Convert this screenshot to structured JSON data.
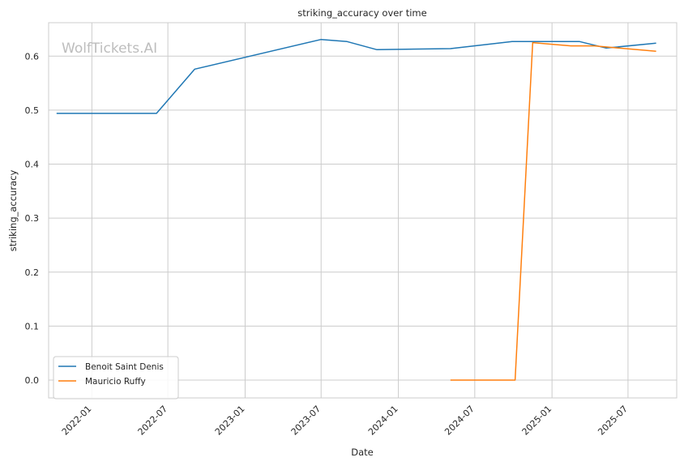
{
  "chart_data": {
    "type": "line",
    "title": "striking_accuracy over time",
    "xlabel": "Date",
    "ylabel": "striking_accuracy",
    "watermark": "WolfTickets.AI",
    "x_ticks": [
      "2022-01",
      "2022-07",
      "2023-01",
      "2023-07",
      "2024-01",
      "2024-07",
      "2025-01",
      "2025-07"
    ],
    "y_ticks": [
      "0.0",
      "0.1",
      "0.2",
      "0.3",
      "0.4",
      "0.5",
      "0.6"
    ],
    "xlim": [
      "2021-09-20",
      "2025-10-25"
    ],
    "ylim": [
      -0.033,
      0.662
    ],
    "grid": true,
    "legend_position": "lower-left",
    "series": [
      {
        "name": "Benoit Saint Denis",
        "color": "#1f77b4",
        "points": [
          {
            "x": "2021-10-09",
            "y": 0.494
          },
          {
            "x": "2022-06-04",
            "y": 0.494
          },
          {
            "x": "2022-09-03",
            "y": 0.576
          },
          {
            "x": "2023-07-01",
            "y": 0.631
          },
          {
            "x": "2023-09-01",
            "y": 0.627
          },
          {
            "x": "2023-11-11",
            "y": 0.612
          },
          {
            "x": "2024-05-04",
            "y": 0.614
          },
          {
            "x": "2024-09-28",
            "y": 0.627
          },
          {
            "x": "2025-03-08",
            "y": 0.627
          },
          {
            "x": "2025-05-10",
            "y": 0.615
          },
          {
            "x": "2025-09-06",
            "y": 0.624
          }
        ]
      },
      {
        "name": "Mauricio Ruffy",
        "color": "#ff7f0e",
        "points": [
          {
            "x": "2024-05-04",
            "y": 0.0
          },
          {
            "x": "2024-10-05",
            "y": 0.0
          },
          {
            "x": "2024-11-16",
            "y": 0.625
          },
          {
            "x": "2025-02-15",
            "y": 0.619
          },
          {
            "x": "2025-04-12",
            "y": 0.619
          },
          {
            "x": "2025-09-06",
            "y": 0.609
          }
        ]
      }
    ]
  }
}
